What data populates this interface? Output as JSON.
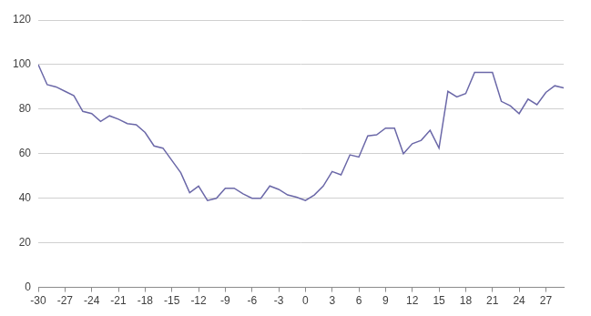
{
  "chart_data": {
    "type": "line",
    "x": [
      -30,
      -29,
      -28,
      -27,
      -26,
      -25,
      -24,
      -23,
      -22,
      -21,
      -20,
      -19,
      -18,
      -17,
      -16,
      -15,
      -14,
      -13,
      -12,
      -11,
      -10,
      -9,
      -8,
      -7,
      -6,
      -5,
      -4,
      -3,
      -2,
      -1,
      0,
      1,
      2,
      3,
      4,
      5,
      6,
      7,
      8,
      9,
      10,
      11,
      12,
      13,
      14,
      15,
      16,
      17,
      18,
      19,
      20,
      21,
      22,
      23,
      24,
      25,
      26,
      27,
      28,
      29
    ],
    "values": [
      100,
      91,
      90,
      88,
      86,
      79,
      78,
      74.5,
      77,
      75.5,
      73.5,
      73,
      69.5,
      63.5,
      62.5,
      57,
      51.5,
      42.5,
      45.5,
      39,
      40,
      44.5,
      44.5,
      42,
      40,
      40,
      45.5,
      44,
      41.5,
      40.5,
      39,
      41.5,
      45.5,
      52,
      50.5,
      59.5,
      58.5,
      68,
      68.5,
      71.5,
      71.5,
      60,
      64.5,
      66,
      70.5,
      62.5,
      88,
      85.5,
      87,
      96.5,
      96.5,
      96.5,
      83.5,
      81.5,
      78,
      84.5,
      82,
      87.5,
      90.5,
      89.5
    ],
    "color": "#6b68a8",
    "xlim": [
      -30,
      29
    ],
    "xticks": [
      -30,
      -27,
      -24,
      -21,
      -18,
      -15,
      -12,
      -9,
      -6,
      -3,
      0,
      3,
      6,
      9,
      12,
      15,
      18,
      21,
      24,
      27
    ],
    "ylim": [
      0,
      120
    ],
    "yticks": [
      0,
      20,
      40,
      60,
      80,
      100,
      120
    ],
    "grid": true
  }
}
